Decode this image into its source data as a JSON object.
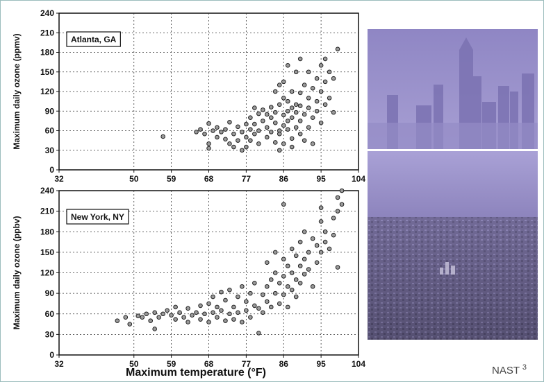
{
  "xlabel": "Maximum temperature (°F)",
  "credit": {
    "label": "NAST",
    "sup": "3"
  },
  "chart_data": [
    {
      "type": "scatter",
      "title": "Atlanta, GA",
      "ylabel": "Maximum daily ozone (ppmv)",
      "xticks": [
        32,
        50,
        59,
        68,
        77,
        86,
        95,
        104
      ],
      "yticks": [
        0,
        30,
        60,
        90,
        120,
        150,
        180,
        210,
        240
      ],
      "xlim": [
        32,
        104
      ],
      "ylim": [
        0,
        240
      ],
      "grid": true,
      "points": [
        [
          57,
          51
        ],
        [
          65,
          58
        ],
        [
          66,
          62
        ],
        [
          67,
          55
        ],
        [
          68,
          40
        ],
        [
          68,
          33
        ],
        [
          68,
          71
        ],
        [
          69,
          60
        ],
        [
          70,
          65
        ],
        [
          70,
          50
        ],
        [
          71,
          58
        ],
        [
          72,
          47
        ],
        [
          72,
          62
        ],
        [
          73,
          73
        ],
        [
          73,
          40
        ],
        [
          74,
          35
        ],
        [
          74,
          55
        ],
        [
          75,
          66
        ],
        [
          75,
          45
        ],
        [
          76,
          30
        ],
        [
          76,
          58
        ],
        [
          77,
          70
        ],
        [
          77,
          50
        ],
        [
          77,
          35
        ],
        [
          78,
          62
        ],
        [
          78,
          80
        ],
        [
          78,
          45
        ],
        [
          79,
          55
        ],
        [
          79,
          70
        ],
        [
          80,
          86
        ],
        [
          80,
          60
        ],
        [
          80,
          40
        ],
        [
          81,
          75
        ],
        [
          81,
          92
        ],
        [
          82,
          65
        ],
        [
          82,
          50
        ],
        [
          83,
          80
        ],
        [
          83,
          96
        ],
        [
          83,
          58
        ],
        [
          84,
          72
        ],
        [
          84,
          88
        ],
        [
          84,
          42
        ],
        [
          85,
          60
        ],
        [
          85,
          100
        ],
        [
          85,
          55
        ],
        [
          85,
          30
        ],
        [
          86,
          68
        ],
        [
          86,
          84
        ],
        [
          86,
          110
        ],
        [
          86,
          40
        ],
        [
          87,
          90
        ],
        [
          87,
          62
        ],
        [
          87,
          75
        ],
        [
          87,
          105
        ],
        [
          88,
          95
        ],
        [
          88,
          48
        ],
        [
          88,
          80
        ],
        [
          88,
          120
        ],
        [
          88,
          35
        ],
        [
          89,
          100
        ],
        [
          89,
          65
        ],
        [
          89,
          88
        ],
        [
          89,
          150
        ],
        [
          90,
          118
        ],
        [
          90,
          55
        ],
        [
          90,
          98
        ],
        [
          90,
          75
        ],
        [
          91,
          130
        ],
        [
          91,
          85
        ],
        [
          91,
          45
        ],
        [
          92,
          110
        ],
        [
          92,
          95
        ],
        [
          92,
          65
        ],
        [
          93,
          125
        ],
        [
          93,
          80
        ],
        [
          93,
          40
        ],
        [
          94,
          140
        ],
        [
          94,
          105
        ],
        [
          94,
          90
        ],
        [
          95,
          160
        ],
        [
          95,
          120
        ],
        [
          95,
          72
        ],
        [
          96,
          135
        ],
        [
          96,
          100
        ],
        [
          97,
          150
        ],
        [
          97,
          110
        ],
        [
          98,
          140
        ],
        [
          98,
          88
        ],
        [
          99,
          185
        ],
        [
          87,
          160
        ],
        [
          90,
          170
        ],
        [
          85,
          130
        ],
        [
          82,
          85
        ],
        [
          79,
          95
        ],
        [
          84,
          120
        ],
        [
          86,
          135
        ],
        [
          92,
          150
        ],
        [
          96,
          170
        ]
      ]
    },
    {
      "type": "scatter",
      "title": "New York, NY",
      "ylabel": "Maximum daily ozone (ppbv)",
      "xticks": [
        32,
        50,
        59,
        68,
        77,
        86,
        95,
        104
      ],
      "yticks": [
        0,
        30,
        60,
        90,
        120,
        150,
        180,
        210,
        240
      ],
      "xlim": [
        32,
        104
      ],
      "ylim": [
        0,
        240
      ],
      "grid": true,
      "points": [
        [
          46,
          50
        ],
        [
          48,
          55
        ],
        [
          49,
          45
        ],
        [
          51,
          57
        ],
        [
          52,
          55
        ],
        [
          53,
          60
        ],
        [
          54,
          50
        ],
        [
          55,
          62
        ],
        [
          55,
          38
        ],
        [
          56,
          55
        ],
        [
          57,
          60
        ],
        [
          58,
          65
        ],
        [
          59,
          58
        ],
        [
          60,
          70
        ],
        [
          60,
          52
        ],
        [
          61,
          62
        ],
        [
          62,
          55
        ],
        [
          63,
          48
        ],
        [
          63,
          68
        ],
        [
          64,
          58
        ],
        [
          65,
          62
        ],
        [
          66,
          72
        ],
        [
          66,
          52
        ],
        [
          67,
          60
        ],
        [
          68,
          75
        ],
        [
          68,
          48
        ],
        [
          69,
          85
        ],
        [
          69,
          62
        ],
        [
          70,
          55
        ],
        [
          70,
          70
        ],
        [
          71,
          65
        ],
        [
          71,
          92
        ],
        [
          72,
          50
        ],
        [
          72,
          80
        ],
        [
          73,
          60
        ],
        [
          73,
          95
        ],
        [
          74,
          70
        ],
        [
          74,
          52
        ],
        [
          75,
          85
        ],
        [
          75,
          62
        ],
        [
          76,
          100
        ],
        [
          76,
          48
        ],
        [
          77,
          78
        ],
        [
          77,
          65
        ],
        [
          78,
          90
        ],
        [
          78,
          55
        ],
        [
          79,
          105
        ],
        [
          79,
          72
        ],
        [
          80,
          68
        ],
        [
          80,
          32
        ],
        [
          81,
          88
        ],
        [
          81,
          62
        ],
        [
          82,
          100
        ],
        [
          82,
          78
        ],
        [
          83,
          110
        ],
        [
          83,
          70
        ],
        [
          84,
          120
        ],
        [
          84,
          90
        ],
        [
          85,
          105
        ],
        [
          85,
          75
        ],
        [
          86,
          140
        ],
        [
          86,
          115
        ],
        [
          86,
          88
        ],
        [
          87,
          130
        ],
        [
          87,
          100
        ],
        [
          87,
          70
        ],
        [
          88,
          155
        ],
        [
          88,
          120
        ],
        [
          88,
          95
        ],
        [
          89,
          145
        ],
        [
          89,
          110
        ],
        [
          89,
          85
        ],
        [
          90,
          165
        ],
        [
          90,
          130
        ],
        [
          90,
          105
        ],
        [
          91,
          180
        ],
        [
          91,
          140
        ],
        [
          91,
          118
        ],
        [
          92,
          150
        ],
        [
          92,
          125
        ],
        [
          93,
          170
        ],
        [
          93,
          100
        ],
        [
          94,
          160
        ],
        [
          94,
          135
        ],
        [
          95,
          195
        ],
        [
          95,
          150
        ],
        [
          95,
          215
        ],
        [
          96,
          180
        ],
        [
          96,
          165
        ],
        [
          97,
          155
        ],
        [
          98,
          200
        ],
        [
          98,
          175
        ],
        [
          99,
          230
        ],
        [
          99,
          210
        ],
        [
          99,
          128
        ],
        [
          100,
          240
        ],
        [
          100,
          220
        ],
        [
          86,
          220
        ],
        [
          84,
          150
        ],
        [
          82,
          135
        ]
      ]
    }
  ]
}
